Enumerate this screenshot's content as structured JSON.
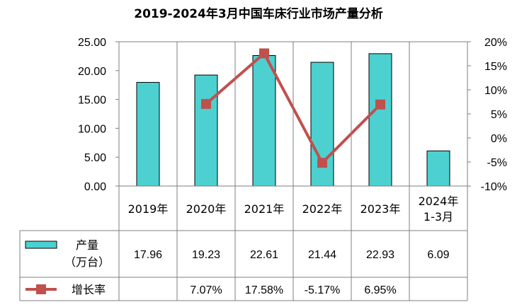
{
  "chart_data": {
    "type": "bar",
    "title": "2019-2024年3月中国车床行业市场产量分析",
    "categories": [
      [
        "2019年"
      ],
      [
        "2020年"
      ],
      [
        "2021年"
      ],
      [
        "2022年"
      ],
      [
        "2023年"
      ],
      [
        "2024年",
        "1-3月"
      ]
    ],
    "series": [
      {
        "name_lines": [
          "产量",
          "（万台）"
        ],
        "type": "bar",
        "axis": "left",
        "color": "#4dd0d0",
        "values": [
          17.96,
          19.23,
          22.61,
          21.44,
          22.93,
          6.09
        ],
        "labels": [
          "17.96",
          "19.23",
          "22.61",
          "21.44",
          "22.93",
          "6.09"
        ]
      },
      {
        "name_lines": [
          "增长率"
        ],
        "type": "line",
        "axis": "right",
        "color": "#c0504d",
        "values": [
          null,
          7.07,
          17.58,
          -5.17,
          6.95,
          null
        ],
        "labels": [
          "",
          "7.07%",
          "17.58%",
          "-5.17%",
          "6.95%",
          ""
        ]
      }
    ],
    "y_left": {
      "min": 0,
      "max": 25,
      "step": 5,
      "tick_labels": [
        "0.00",
        "5.00",
        "10.00",
        "15.00",
        "20.00",
        "25.00"
      ]
    },
    "y_right": {
      "min": -10,
      "max": 20,
      "step": 5,
      "tick_labels": [
        "-10%",
        "-5%",
        "0%",
        "5%",
        "10%",
        "15%",
        "20%"
      ]
    },
    "grid": false,
    "legend": "data-table"
  }
}
